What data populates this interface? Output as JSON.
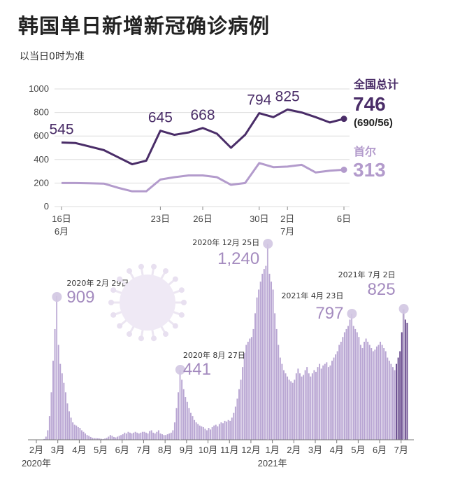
{
  "header": {
    "title": "韩国单日新增新冠确诊病例",
    "subtitle": "以当日0时为准"
  },
  "colors": {
    "national": "#4a2d68",
    "seoul": "#b39bcc",
    "bars": "#b9a6d3",
    "bars_recent": "#6a4c8f",
    "marker": "#d2c6e2"
  },
  "chart_data": [
    {
      "type": "line",
      "ylim": [
        0,
        1000
      ],
      "y_ticks": [
        0,
        200,
        400,
        600,
        800,
        1000
      ],
      "x": [
        16,
        17,
        18,
        19,
        20,
        21,
        22,
        23,
        24,
        25,
        26,
        27,
        28,
        29,
        30,
        1,
        2,
        3,
        4,
        5,
        6
      ],
      "x_labels": [
        {
          "i": 0,
          "text": "16日",
          "sub": "6月"
        },
        {
          "i": 7,
          "text": "23日",
          "sub": ""
        },
        {
          "i": 10,
          "text": "26日",
          "sub": ""
        },
        {
          "i": 14,
          "text": "30日",
          "sub": ""
        },
        {
          "i": 16,
          "text": "2日",
          "sub": "7月"
        },
        {
          "i": 20,
          "text": "6日",
          "sub": ""
        }
      ],
      "series": [
        {
          "name": "全国总计",
          "values": [
            545,
            540,
            510,
            480,
            420,
            360,
            390,
            645,
            610,
            630,
            668,
            620,
            500,
            610,
            794,
            760,
            825,
            800,
            760,
            715,
            746
          ],
          "labels": [
            {
              "i": 0,
              "text": "545"
            },
            {
              "i": 7,
              "text": "645"
            },
            {
              "i": 10,
              "text": "668"
            },
            {
              "i": 14,
              "text": "794"
            },
            {
              "i": 16,
              "text": "825"
            }
          ],
          "latest": "746",
          "latest_detail": "(690/56)"
        },
        {
          "name": "首尔",
          "values": [
            200,
            200,
            198,
            195,
            160,
            130,
            130,
            230,
            250,
            265,
            265,
            250,
            185,
            200,
            370,
            335,
            340,
            355,
            290,
            305,
            313
          ],
          "latest": "313"
        }
      ]
    },
    {
      "type": "bar",
      "ylim": [
        0,
        1240
      ],
      "x_labels": [
        "2月",
        "3月",
        "4月",
        "5月",
        "6月",
        "7月",
        "8月",
        "9月",
        "10月",
        "11月",
        "12月",
        "1月",
        "2月",
        "3月",
        "4月",
        "5月",
        "6月",
        "7月"
      ],
      "year_labels": [
        {
          "at": 0,
          "text": "2020年"
        },
        {
          "at": 11,
          "text": "2021年"
        }
      ],
      "monthly_profile": [
        {
          "month": "2020-02",
          "values": [
            0,
            0,
            0,
            0,
            5,
            20,
            60,
            150,
            300,
            500,
            700,
            909
          ]
        },
        {
          "month": "2020-03",
          "values": [
            600,
            480,
            420,
            360,
            300,
            230,
            180,
            140,
            110,
            95,
            90,
            80
          ]
        },
        {
          "month": "2020-04",
          "values": [
            75,
            60,
            50,
            40,
            30,
            25,
            18,
            12,
            10,
            10,
            9,
            8
          ]
        },
        {
          "month": "2020-05",
          "values": [
            6,
            5,
            8,
            12,
            20,
            30,
            25,
            18,
            15,
            20,
            25,
            30
          ]
        },
        {
          "month": "2020-06",
          "values": [
            35,
            45,
            40,
            50,
            45,
            40,
            45,
            50,
            45,
            40,
            45,
            50
          ]
        },
        {
          "month": "2020-07",
          "values": [
            50,
            45,
            40,
            55,
            60,
            45,
            40,
            50,
            60,
            40,
            35,
            30
          ]
        },
        {
          "month": "2020-08",
          "values": [
            30,
            35,
            40,
            45,
            60,
            110,
            200,
            300,
            441,
            380,
            320,
            270
          ]
        },
        {
          "month": "2020-09",
          "values": [
            240,
            200,
            170,
            150,
            125,
            110,
            100,
            90,
            85,
            80,
            70,
            60
          ]
        },
        {
          "month": "2020-10",
          "values": [
            75,
            65,
            80,
            90,
            95,
            85,
            100,
            110,
            105,
            120,
            115,
            125
          ]
        },
        {
          "month": "2020-11",
          "values": [
            120,
            140,
            170,
            210,
            260,
            320,
            380,
            460,
            550,
            600,
            620,
            640
          ]
        },
        {
          "month": "2020-12",
          "values": [
            650,
            700,
            800,
            900,
            950,
            1000,
            1050,
            1080,
            1100,
            1240,
            1050,
            1000
          ]
        },
        {
          "month": "2021-01",
          "values": [
            950,
            800,
            700,
            600,
            520,
            480,
            440,
            420,
            400,
            380,
            370,
            360
          ]
        },
        {
          "month": "2021-02",
          "values": [
            380,
            420,
            450,
            420,
            400,
            410,
            440,
            460,
            420,
            400,
            420,
            440
          ]
        },
        {
          "month": "2021-03",
          "values": [
            430,
            460,
            480,
            450,
            470,
            480,
            490,
            460,
            470,
            500,
            520,
            540
          ]
        },
        {
          "month": "2021-04",
          "values": [
            560,
            600,
            620,
            650,
            680,
            700,
            720,
            760,
            797,
            720,
            700,
            680
          ]
        },
        {
          "month": "2021-05",
          "values": [
            650,
            600,
            580,
            620,
            640,
            620,
            600,
            580,
            560,
            570,
            590,
            600
          ]
        },
        {
          "month": "2021-06",
          "values": [
            620,
            600,
            580,
            560,
            520,
            500,
            480,
            460,
            440,
            480,
            520,
            560
          ]
        },
        {
          "month": "2021-07",
          "values": [
            680,
            825,
            760,
            740
          ]
        }
      ],
      "annotations": [
        {
          "date": "2020年 2月 29日",
          "value": "909",
          "month_index": 0,
          "pos": 11
        },
        {
          "date": "2020年 8月 27日",
          "value": "441",
          "month_index": 6,
          "pos": 8
        },
        {
          "date": "2020年 12月 25日",
          "value": "1,240",
          "month_index": 10,
          "pos": 9
        },
        {
          "date": "2021年 4月 23日",
          "value": "797",
          "month_index": 14,
          "pos": 8
        },
        {
          "date": "2021年 7月 2日",
          "value": "825",
          "month_index": 17,
          "pos": 1
        }
      ]
    }
  ]
}
